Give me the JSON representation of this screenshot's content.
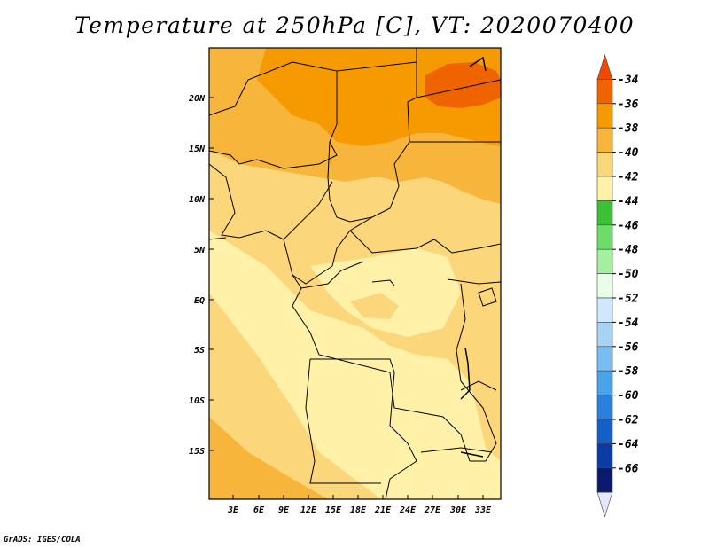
{
  "title": "Temperature at 250hPa [C], VT: 2020070400",
  "footer": "GrADS: IGES/COLA",
  "map": {
    "lon_labels": [
      "3E",
      "6E",
      "9E",
      "12E",
      "15E",
      "18E",
      "21E",
      "24E",
      "27E",
      "30E",
      "33E"
    ],
    "lat_labels": [
      "20N",
      "15N",
      "10N",
      "5N",
      "EQ",
      "5S",
      "10S",
      "15S"
    ]
  },
  "colorbar": {
    "labels": [
      "-34",
      "-36",
      "-38",
      "-40",
      "-42",
      "-44",
      "-46",
      "-48",
      "-50",
      "-52",
      "-54",
      "-56",
      "-58",
      "-60",
      "-62",
      "-64",
      "-66"
    ],
    "colors": [
      "#f04a00",
      "#f06400",
      "#f59a00",
      "#f8b53c",
      "#fcd67a",
      "#fff2a8",
      "#3cc035",
      "#6fdb6a",
      "#a5f0a0",
      "#e6ffe6",
      "#cfe8ff",
      "#a8d3f5",
      "#7bbdf0",
      "#4aa3e6",
      "#2b80dc",
      "#1460c8",
      "#0b3ba5",
      "#0a1a6e",
      "#e6e6ff"
    ]
  },
  "colors": {
    "border": "#000000",
    "field_warm": "#f5a623",
    "field_hot": "#f06400",
    "field_mid": "#fcd67a",
    "field_cool": "#fff2a8"
  }
}
